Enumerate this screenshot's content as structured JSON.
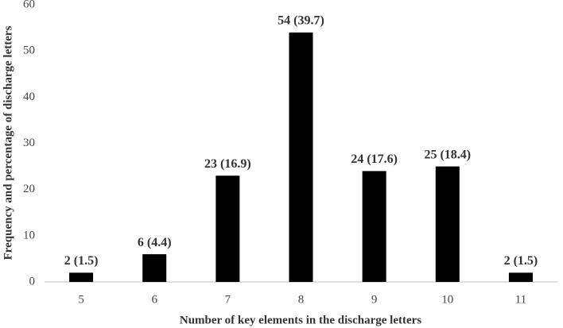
{
  "chart_data": {
    "type": "bar",
    "x_label": "Number of key elements in the discharge letters",
    "y_label": "Frequency and percentage of discharge letters",
    "categories": [
      "5",
      "6",
      "7",
      "8",
      "9",
      "10",
      "11"
    ],
    "values": [
      2,
      6,
      23,
      54,
      24,
      25,
      2
    ],
    "value_labels": [
      "2 (1.5)",
      "6 (4.4)",
      "23 (16.9)",
      "54 (39.7)",
      "24 (17.6)",
      "25 (18.4)",
      "2 (1.5)"
    ],
    "color": "#000000",
    "ylim": [
      0,
      60
    ],
    "yticks": [
      0,
      10,
      20,
      30,
      40,
      50,
      60
    ],
    "grid": false
  }
}
